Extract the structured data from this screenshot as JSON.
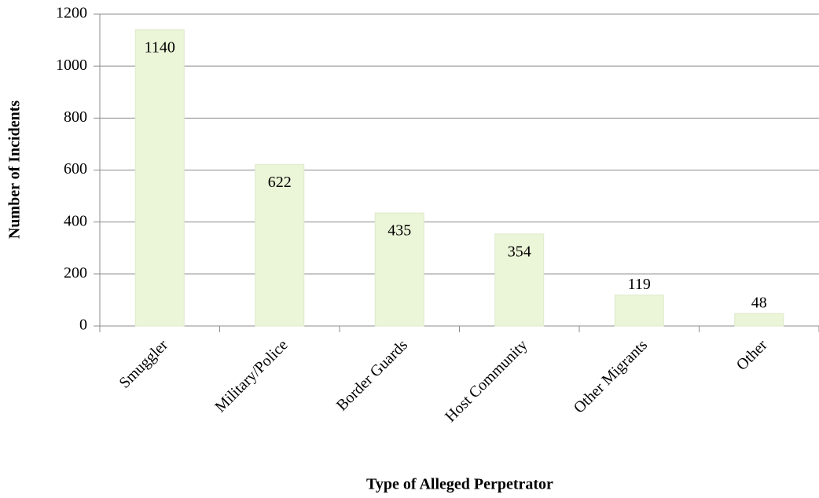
{
  "chart_data": {
    "type": "bar",
    "categories": [
      "Smuggler",
      "Military/Police",
      "Border Guards",
      "Host Community",
      "Other Migrants",
      "Other"
    ],
    "values": [
      1140,
      622,
      435,
      354,
      119,
      48
    ],
    "color": "#ebf5d7",
    "ylim": [
      0,
      1200
    ],
    "yticks": [
      0,
      200,
      400,
      600,
      800,
      1000,
      1200
    ],
    "grid": true,
    "ylabel": "Number of Incidents",
    "xlabel": "Type of Alleged Perpetrator"
  }
}
